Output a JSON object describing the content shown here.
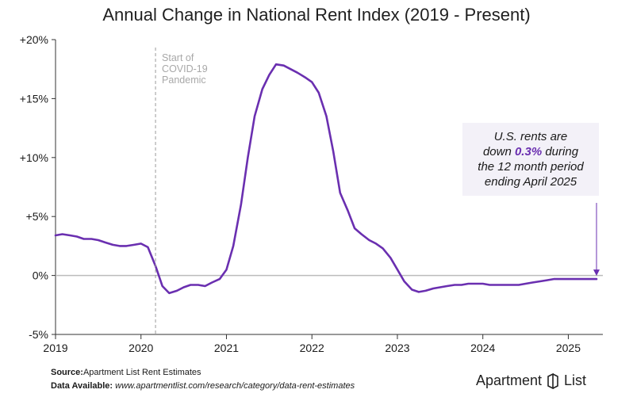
{
  "header": {
    "title": "Annual Change in National Rent Index (2019 - Present)"
  },
  "footer": {
    "source_label": "Source:",
    "source_value": "Apartment List Rent Estimates",
    "available_label": "Data Available:",
    "available_value": "www.apartmentlist.com/research/category/data-rent-estimates"
  },
  "logo": {
    "left": "Apartment",
    "right": "List"
  },
  "colors": {
    "line": "#6a2fb0",
    "zero": "#bbbbbb",
    "highlight": "#6a2fb0",
    "callout_bg": "#f3f1f8"
  },
  "chart_data": {
    "type": "line",
    "title": "Annual Change in National Rent Index (2019 - Present)",
    "xlabel": "",
    "ylabel": "",
    "ylim": [
      -5,
      20
    ],
    "xlim": [
      2019.0,
      2025.33
    ],
    "yticks": [
      "+20%",
      "+15%",
      "+10%",
      "+5%",
      "0%",
      "-5%"
    ],
    "ytick_values": [
      20,
      15,
      10,
      5,
      0,
      -5
    ],
    "xticks": [
      "2019",
      "2020",
      "2021",
      "2022",
      "2023",
      "2024",
      "2025"
    ],
    "xtick_values": [
      2019,
      2020,
      2021,
      2022,
      2023,
      2024,
      2025
    ],
    "grid": false,
    "series": [
      {
        "x": [
          2019.0,
          2019.08,
          2019.17,
          2019.25,
          2019.33,
          2019.42,
          2019.5,
          2019.58,
          2019.67,
          2019.75,
          2019.83,
          2019.92,
          2020.0,
          2020.08,
          2020.17,
          2020.25,
          2020.33,
          2020.42,
          2020.5,
          2020.58,
          2020.67,
          2020.75,
          2020.83,
          2020.92,
          2021.0,
          2021.08,
          2021.17,
          2021.25,
          2021.33,
          2021.42,
          2021.5,
          2021.58,
          2021.67,
          2021.75,
          2021.83,
          2021.92,
          2022.0,
          2022.08,
          2022.17,
          2022.25,
          2022.33,
          2022.42,
          2022.5,
          2022.58,
          2022.67,
          2022.75,
          2022.83,
          2022.92,
          2023.0,
          2023.08,
          2023.17,
          2023.25,
          2023.33,
          2023.42,
          2023.5,
          2023.58,
          2023.67,
          2023.75,
          2023.83,
          2023.92,
          2024.0,
          2024.08,
          2024.17,
          2024.25,
          2024.33,
          2024.42,
          2024.5,
          2024.58,
          2024.67,
          2024.75,
          2024.83,
          2024.92,
          2025.0,
          2025.08,
          2025.17,
          2025.25,
          2025.33
        ],
        "values": [
          3.4,
          3.5,
          3.4,
          3.3,
          3.1,
          3.1,
          3.0,
          2.8,
          2.6,
          2.5,
          2.5,
          2.6,
          2.7,
          2.4,
          0.8,
          -0.9,
          -1.5,
          -1.3,
          -1.0,
          -0.8,
          -0.8,
          -0.9,
          -0.6,
          -0.3,
          0.5,
          2.5,
          6.0,
          10.0,
          13.5,
          15.8,
          17.0,
          17.9,
          17.8,
          17.5,
          17.2,
          16.8,
          16.4,
          15.5,
          13.5,
          10.5,
          7.0,
          5.5,
          4.0,
          3.5,
          3.0,
          2.7,
          2.3,
          1.5,
          0.5,
          -0.5,
          -1.2,
          -1.4,
          -1.3,
          -1.1,
          -1.0,
          -0.9,
          -0.8,
          -0.8,
          -0.7,
          -0.7,
          -0.7,
          -0.8,
          -0.8,
          -0.8,
          -0.8,
          -0.8,
          -0.7,
          -0.6,
          -0.5,
          -0.4,
          -0.3,
          -0.3,
          -0.3,
          -0.3,
          -0.3,
          -0.3,
          -0.3
        ]
      }
    ],
    "annotations": {
      "covid_x": 2020.17,
      "covid_label": [
        "Start of",
        "COVID-19",
        "Pandemic"
      ],
      "callout_lines": [
        "U.S. rents are",
        "down ",
        "0.3%",
        " during",
        "the 12 month period",
        "ending April 2025"
      ]
    }
  }
}
